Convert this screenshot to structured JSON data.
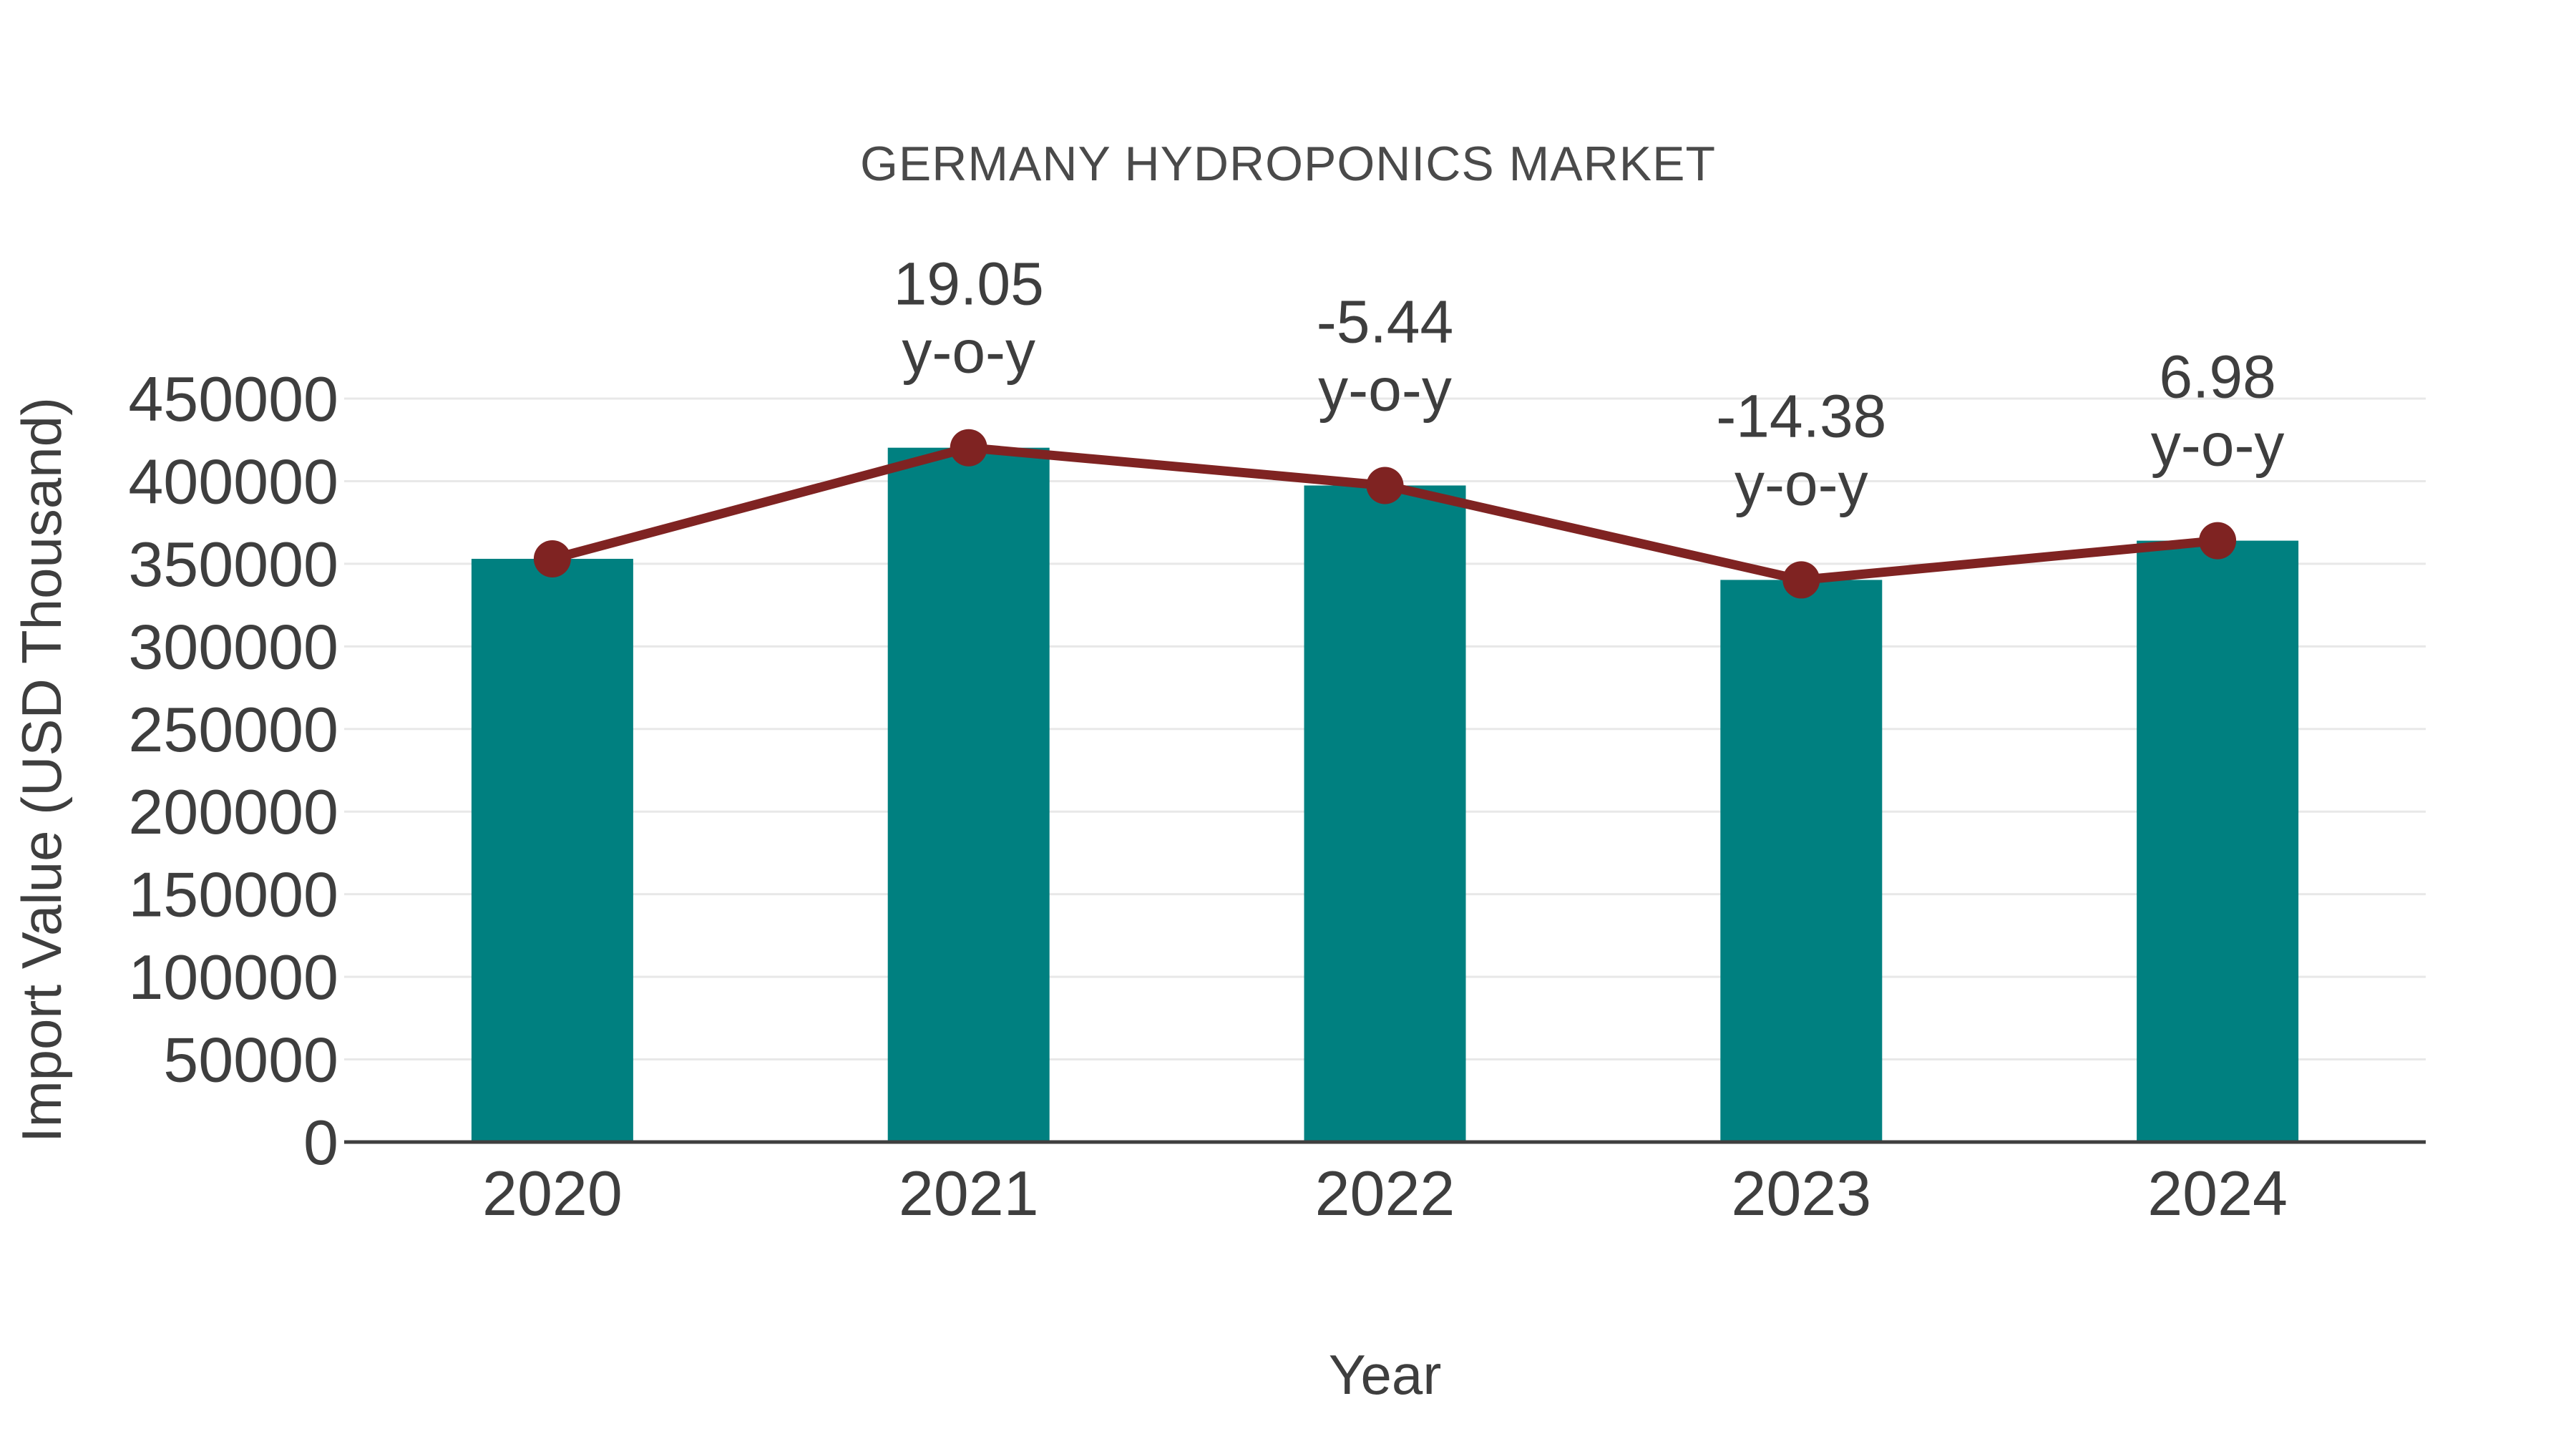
{
  "chart_data": {
    "type": "bar",
    "title": "GERMANY HYDROPONICS MARKET",
    "xlabel": "Year",
    "ylabel": "Import Value (USD Thousand)",
    "categories": [
      "2020",
      "2021",
      "2022",
      "2023",
      "2024"
    ],
    "series": [
      {
        "name": "Import Value bars",
        "type": "bar",
        "color": "#008080",
        "values": [
          353000,
          420250,
          397390,
          340240,
          363990
        ]
      },
      {
        "name": "Import Value trend line",
        "type": "line",
        "color": "#7f2322",
        "values": [
          353000,
          420250,
          397390,
          340240,
          363990
        ]
      }
    ],
    "annotations": [
      {
        "category": "2021",
        "value_label": "19.05",
        "sub_label": "y-o-y"
      },
      {
        "category": "2022",
        "value_label": "-5.44",
        "sub_label": "y-o-y"
      },
      {
        "category": "2023",
        "value_label": "-14.38",
        "sub_label": "y-o-y"
      },
      {
        "category": "2024",
        "value_label": "6.98",
        "sub_label": "y-o-y"
      }
    ],
    "ylim": [
      0,
      470000
    ],
    "yticks": [
      0,
      50000,
      100000,
      150000,
      200000,
      250000,
      300000,
      350000,
      400000,
      450000
    ],
    "grid": true,
    "legend_position": "none",
    "colors": {
      "bar": "#008080",
      "line": "#7f2322",
      "marker": "#7f2322",
      "gridline": "#e8e8e8",
      "axis_line": "#3f3f3f",
      "tick_text": "#3e3e3e",
      "title_text": "#4a4a4a"
    }
  }
}
